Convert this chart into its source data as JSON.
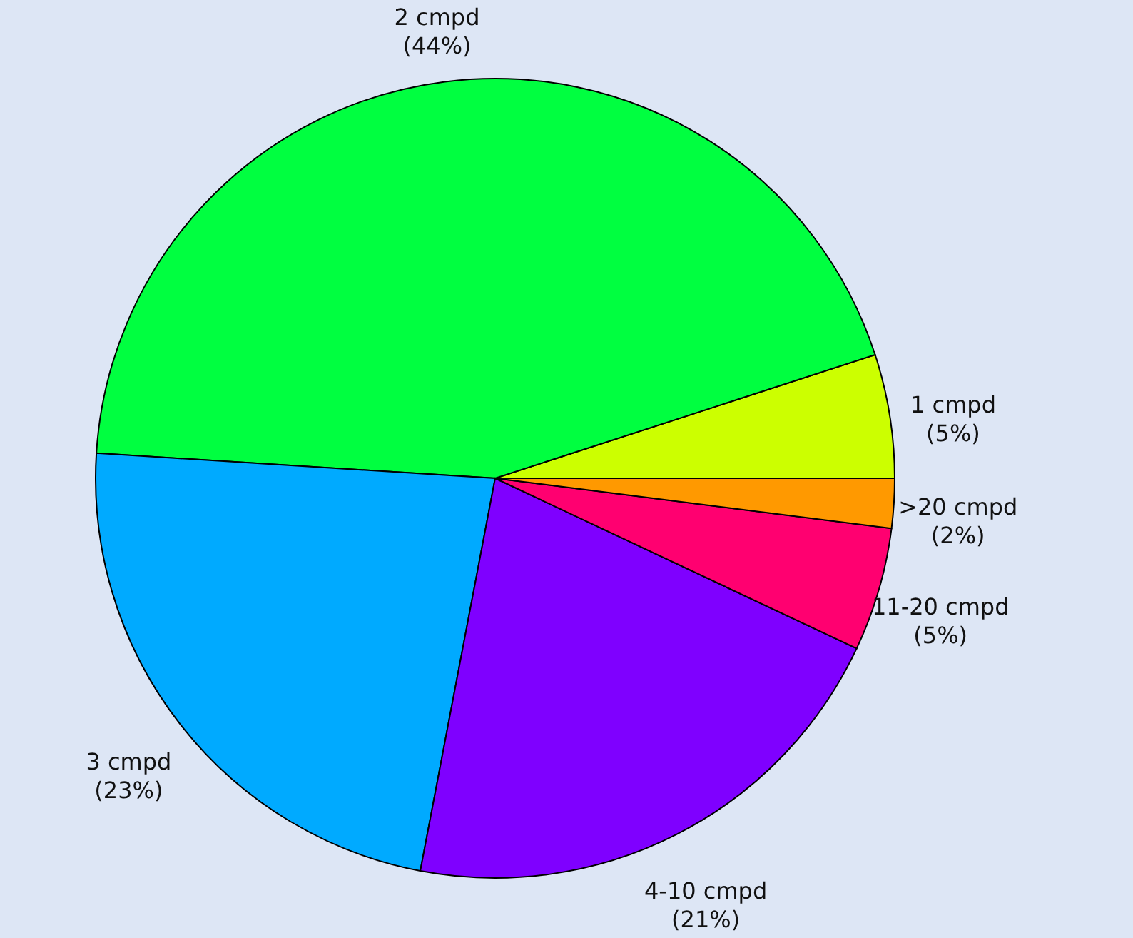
{
  "chart_data": {
    "type": "pie",
    "categories": [
      "1 cmpd",
      "2 cmpd",
      "3 cmpd",
      "4-10 cmpd",
      "11-20 cmpd",
      ">20 cmpd"
    ],
    "values": [
      5,
      44,
      23,
      21,
      5,
      2
    ],
    "value_labels": [
      "(5%)",
      "(44%)",
      "(23%)",
      "(21%)",
      "(5%)",
      "(2%)"
    ],
    "colors": [
      "#ccff00",
      "#00ff40",
      "#00aaff",
      "#7f00ff",
      "#ff0070",
      "#ff9900"
    ]
  }
}
